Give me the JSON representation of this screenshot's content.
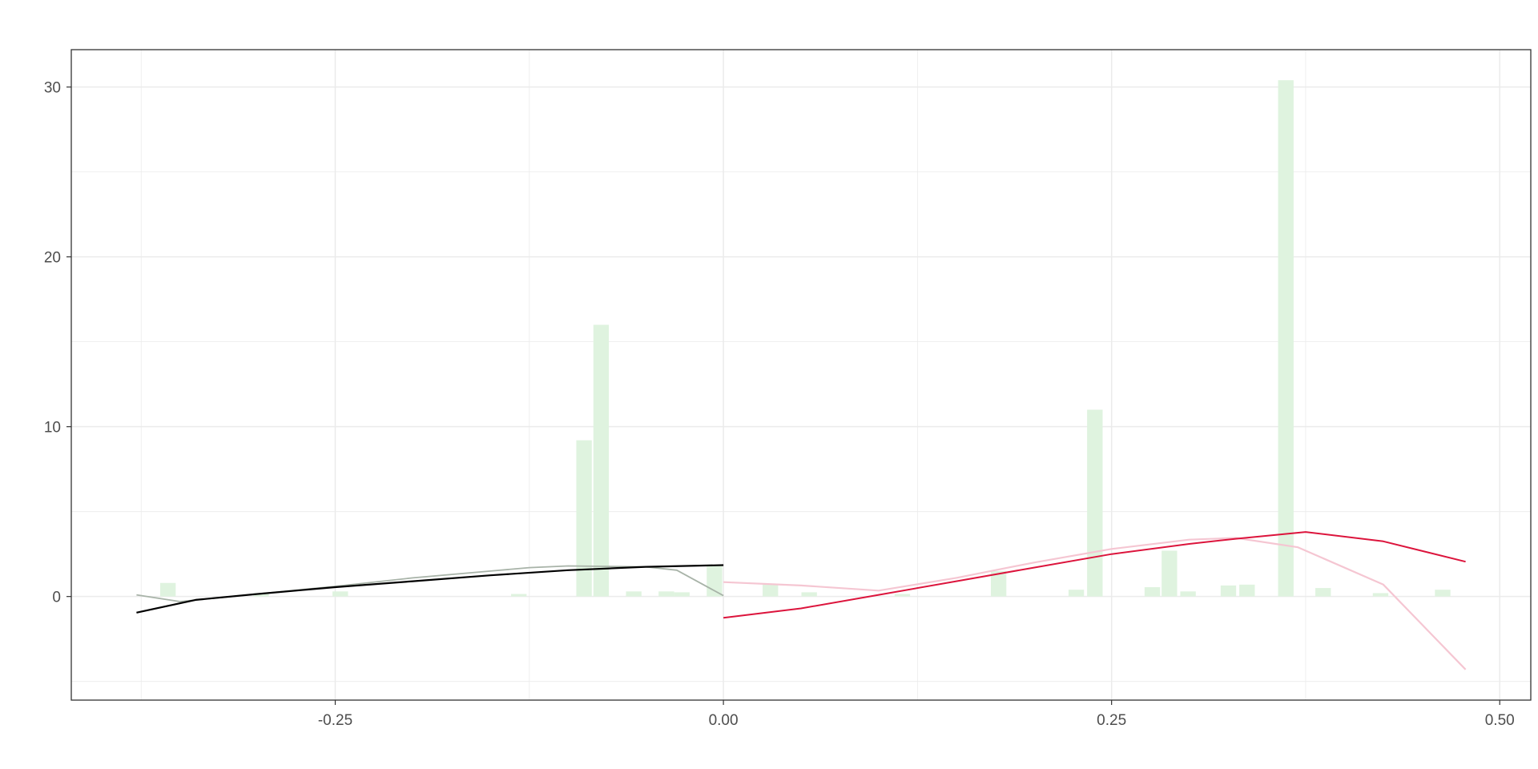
{
  "chart_data": {
    "type": "bar",
    "title": "",
    "xlabel": "",
    "ylabel": "",
    "xlim": [
      -0.42,
      0.52
    ],
    "ylim": [
      -6.1,
      32.2
    ],
    "grid": true,
    "x_ticks": [
      {
        "value": -0.25,
        "label": "-0.25"
      },
      {
        "value": 0,
        "label": "0.00"
      },
      {
        "value": 0.25,
        "label": "0.25"
      },
      {
        "value": 0.5,
        "label": "0.50"
      }
    ],
    "y_ticks": [
      {
        "value": 0,
        "label": "0"
      },
      {
        "value": 10,
        "label": "10"
      },
      {
        "value": 20,
        "label": "20"
      },
      {
        "value": 30,
        "label": "30"
      }
    ],
    "colors": {
      "bars": "#dff3df",
      "left_fit": "#000000",
      "left_fit_light": "#a8b3a8",
      "right_fit": "#dc143c",
      "right_fit_light": "#f5c6d2",
      "grid": "#ebebeb",
      "frame": "#333333"
    },
    "histogram": {
      "bin_width": 0.0105,
      "bins": [
        {
          "x": -0.3575,
          "y": 0.8
        },
        {
          "x": -0.2975,
          "y": 0.2
        },
        {
          "x": -0.2465,
          "y": 0.3
        },
        {
          "x": -0.1315,
          "y": 0.15
        },
        {
          "x": -0.0895,
          "y": 9.2
        },
        {
          "x": -0.0785,
          "y": 16.0
        },
        {
          "x": -0.0575,
          "y": 0.3
        },
        {
          "x": -0.0365,
          "y": 0.3
        },
        {
          "x": -0.0265,
          "y": 0.25
        },
        {
          "x": -0.0055,
          "y": 1.8
        },
        {
          "x": 0.0305,
          "y": 0.7
        },
        {
          "x": 0.0555,
          "y": 0.25
        },
        {
          "x": 0.1155,
          "y": 0.15
        },
        {
          "x": 0.1775,
          "y": 1.5
        },
        {
          "x": 0.2275,
          "y": 0.4
        },
        {
          "x": 0.2395,
          "y": 11.0
        },
        {
          "x": 0.2765,
          "y": 0.55
        },
        {
          "x": 0.2875,
          "y": 2.7
        },
        {
          "x": 0.2995,
          "y": 0.3
        },
        {
          "x": 0.3255,
          "y": 0.65
        },
        {
          "x": 0.3375,
          "y": 0.7
        },
        {
          "x": 0.3625,
          "y": 30.4
        },
        {
          "x": 0.3865,
          "y": 0.5
        },
        {
          "x": 0.4235,
          "y": 0.2
        },
        {
          "x": 0.4635,
          "y": 0.4
        }
      ]
    },
    "series": [
      {
        "points": [
          [
            -0.378,
            -0.95
          ],
          [
            -0.34,
            -0.2
          ],
          [
            -0.3,
            0.15
          ],
          [
            -0.25,
            0.55
          ],
          [
            -0.2,
            0.9
          ],
          [
            -0.15,
            1.25
          ],
          [
            -0.1,
            1.55
          ],
          [
            -0.05,
            1.75
          ],
          [
            0,
            1.85
          ]
        ]
      },
      {
        "points": [
          [
            -0.378,
            0.1
          ],
          [
            -0.35,
            -0.3
          ],
          [
            -0.3,
            0.15
          ],
          [
            -0.25,
            0.6
          ],
          [
            -0.2,
            1.1
          ],
          [
            -0.15,
            1.5
          ],
          [
            -0.125,
            1.7
          ],
          [
            -0.1,
            1.8
          ],
          [
            -0.05,
            1.75
          ],
          [
            -0.03,
            1.55
          ],
          [
            0,
            0.05
          ]
        ]
      },
      {
        "points": [
          [
            0,
            -1.25
          ],
          [
            0.05,
            -0.7
          ],
          [
            0.1,
            0.1
          ],
          [
            0.15,
            0.9
          ],
          [
            0.2,
            1.7
          ],
          [
            0.25,
            2.5
          ],
          [
            0.3,
            3.1
          ],
          [
            0.33,
            3.4
          ],
          [
            0.375,
            3.8
          ],
          [
            0.425,
            3.25
          ],
          [
            0.478,
            2.05
          ]
        ]
      },
      {
        "points": [
          [
            0,
            0.85
          ],
          [
            0.05,
            0.65
          ],
          [
            0.1,
            0.35
          ],
          [
            0.15,
            1.1
          ],
          [
            0.2,
            2.0
          ],
          [
            0.25,
            2.8
          ],
          [
            0.3,
            3.35
          ],
          [
            0.33,
            3.45
          ],
          [
            0.37,
            2.9
          ],
          [
            0.425,
            0.7
          ],
          [
            0.478,
            -4.3
          ]
        ]
      }
    ]
  }
}
